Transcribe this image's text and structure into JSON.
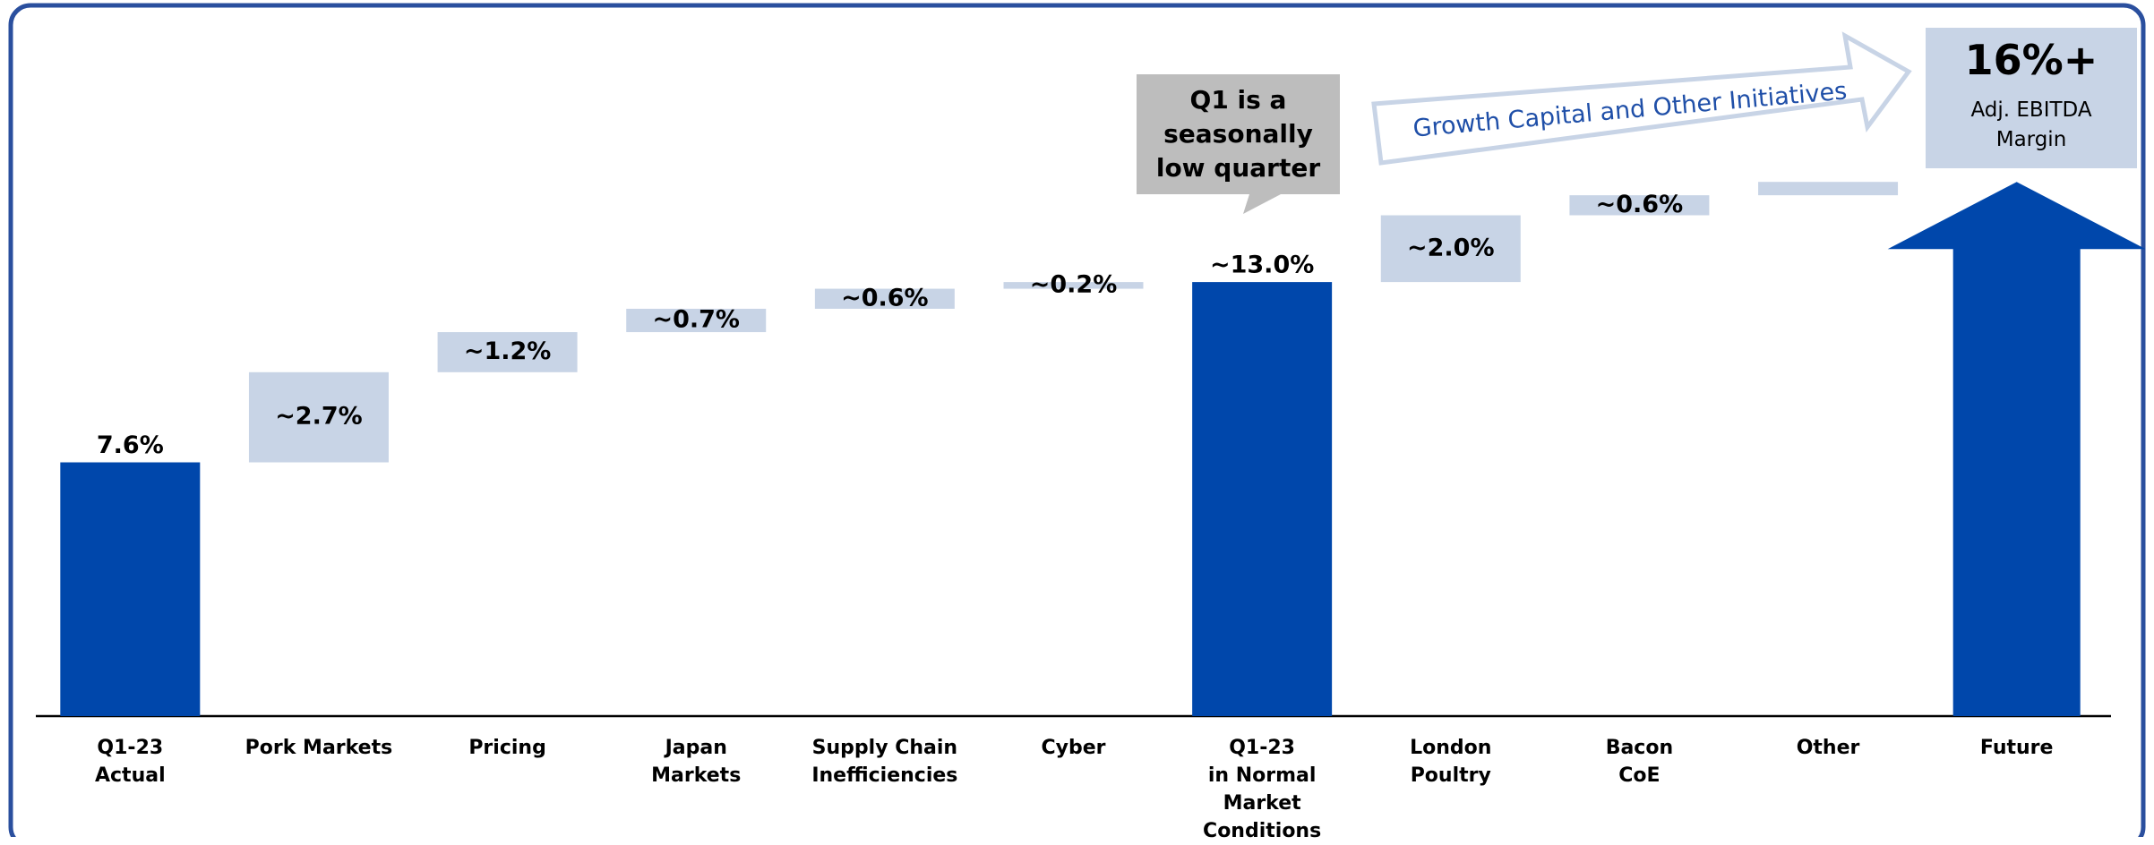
{
  "chart_data": {
    "type": "waterfall",
    "categories": [
      "Q1-23\nActual",
      "Pork Markets",
      "Pricing",
      "Japan\nMarkets",
      "Supply Chain\nInefficiencies",
      "Cyber",
      "Q1-23\nin Normal\nMarket\nConditions",
      "London\nPoultry",
      "Bacon\nCoE",
      "Other",
      "Future"
    ],
    "measure": [
      "absolute",
      "relative",
      "relative",
      "relative",
      "relative",
      "relative",
      "total",
      "relative",
      "relative",
      "relative",
      "total"
    ],
    "values": [
      7.6,
      2.7,
      1.2,
      0.7,
      0.6,
      0.2,
      13.0,
      2.0,
      0.6,
      0.4,
      16
    ],
    "value_labels": [
      "7.6%",
      "~2.7%",
      "~1.2%",
      "~0.7%",
      "~0.6%",
      "~0.2%",
      "~13.0%",
      "~2.0%",
      "~0.6%",
      null,
      "16%+"
    ],
    "color_total": "#0047ab",
    "color_relative": "#c8d4e6",
    "ylim": [
      0,
      20
    ],
    "annotations": {
      "callout": "Q1 is a\nseasonally\nlow quarter",
      "growth_arrow": "Growth Capital and Other Initiatives",
      "target": "Adj. EBITDA\nMargin"
    }
  }
}
